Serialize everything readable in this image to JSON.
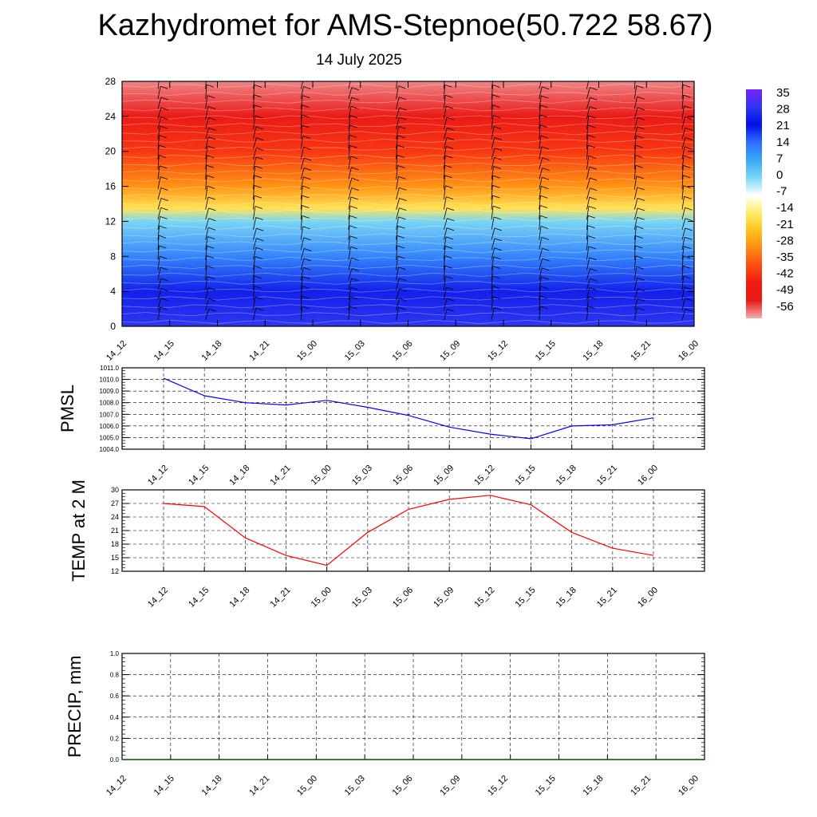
{
  "header": {
    "title": "Kazhydromet for AMS-Stepnoe(50.722 58.67)",
    "date": "14 July 2025"
  },
  "chart_data": [
    {
      "type": "heatmap",
      "id": "temperature-profile",
      "x_categories": [
        "14_12",
        "14_15",
        "14_18",
        "14_21",
        "15_00",
        "15_03",
        "15_06",
        "15_09",
        "15_12",
        "15_15",
        "15_18",
        "15_21",
        "16_00"
      ],
      "y_ticks": [
        "0",
        "4",
        "8",
        "12",
        "16",
        "20",
        "24",
        "28"
      ],
      "ylim": [
        0,
        28
      ],
      "colorbar_labels": [
        "35",
        "28",
        "21",
        "14",
        "7",
        "0",
        "-7",
        "-14",
        "-21",
        "-28",
        "-35",
        "-42",
        "-49",
        "-56"
      ],
      "colorbar_range": [
        -56,
        35
      ],
      "colorbar_colors": [
        "#7a1fff",
        "#2d36f0",
        "#0010e8",
        "#2f6cff",
        "#3aa7f5",
        "#7ad6f5",
        "#ffffff",
        "#ffef6a",
        "#ffc21e",
        "#ff8c12",
        "#ff4c12",
        "#ef1a12",
        "#e81a1a",
        "#f2b0b0"
      ],
      "temperature_by_level": [
        {
          "level": 0,
          "value": 28
        },
        {
          "level": 4,
          "value": 24
        },
        {
          "level": 8,
          "value": 11
        },
        {
          "level": 12,
          "value": 0
        },
        {
          "level": 13.5,
          "value": -16
        },
        {
          "level": 16,
          "value": -27
        },
        {
          "level": 20,
          "value": -38
        },
        {
          "level": 24,
          "value": -46
        },
        {
          "level": 28,
          "value": -54
        }
      ],
      "wind_barbs": "present"
    },
    {
      "type": "line",
      "id": "pmsl",
      "ylabel": "PMSL",
      "categories": [
        "14_12",
        "14_15",
        "14_18",
        "14_21",
        "15_00",
        "15_03",
        "15_06",
        "15_09",
        "15_12",
        "15_15",
        "15_18",
        "15_21",
        "16_00"
      ],
      "y_ticks": [
        "1004.0",
        "1005.0",
        "1006.0",
        "1007.0",
        "1008.0",
        "1009.0",
        "1010.0",
        "1011.0"
      ],
      "ylim": [
        1004,
        1011
      ],
      "values": [
        1010.1,
        1008.6,
        1008.0,
        1007.8,
        1008.2,
        1007.6,
        1006.9,
        1005.9,
        1005.3,
        1004.9,
        1006.0,
        1006.1,
        1006.7
      ],
      "color": "#0000ff",
      "grid": true
    },
    {
      "type": "line",
      "id": "temp-2m",
      "ylabel": "TEMP at 2 M",
      "categories": [
        "14_12",
        "14_15",
        "14_18",
        "14_21",
        "15_00",
        "15_03",
        "15_06",
        "15_09",
        "15_12",
        "15_15",
        "15_18",
        "15_21",
        "16_00"
      ],
      "y_ticks": [
        "12",
        "15",
        "18",
        "21",
        "24",
        "27",
        "30"
      ],
      "ylim": [
        12,
        30
      ],
      "values": [
        27.0,
        26.3,
        19.4,
        15.5,
        13.3,
        20.6,
        25.7,
        27.9,
        28.8,
        26.7,
        20.6,
        17.1,
        15.5
      ],
      "color": "#ff0000",
      "grid": true
    },
    {
      "type": "line",
      "id": "precip",
      "ylabel": "PRECIP, mm",
      "categories": [
        "14_12",
        "14_15",
        "14_18",
        "14_21",
        "15_00",
        "15_03",
        "15_06",
        "15_09",
        "15_12",
        "15_15",
        "15_18",
        "15_21",
        "16_00"
      ],
      "y_ticks": [
        "0.0",
        "0.2",
        "0.4",
        "0.6",
        "0.8",
        "1.0"
      ],
      "ylim": [
        0,
        1
      ],
      "values": [
        0,
        0,
        0,
        0,
        0,
        0,
        0,
        0,
        0,
        0,
        0,
        0,
        0
      ],
      "color": "#006400",
      "grid": true
    }
  ]
}
